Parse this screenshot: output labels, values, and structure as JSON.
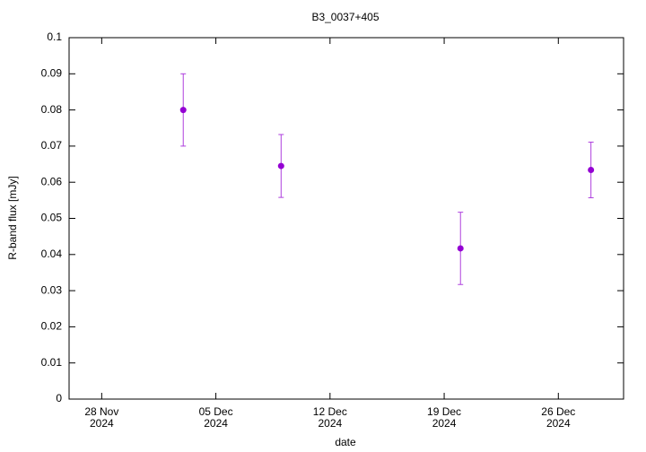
{
  "chart_data": {
    "type": "errorbar",
    "title": "B3_0037+405",
    "xlabel": "date",
    "ylabel": "R-band flux [mJy]",
    "x": [
      "2024-12-03",
      "2024-12-09",
      "2024-12-20",
      "2024-12-28"
    ],
    "series": [
      {
        "color": "#9400d3",
        "values": [
          0.08,
          0.0645,
          0.0417,
          0.0634
        ],
        "errors": [
          0.01,
          0.0087,
          0.01,
          0.0077
        ]
      }
    ],
    "xlim": [
      "2024-11-26",
      "2024-12-30"
    ],
    "xticks": [
      {
        "value": "2024-11-28",
        "label": [
          "28 Nov",
          "2024"
        ]
      },
      {
        "value": "2024-12-05",
        "label": [
          "05 Dec",
          "2024"
        ]
      },
      {
        "value": "2024-12-12",
        "label": [
          "12 Dec",
          "2024"
        ]
      },
      {
        "value": "2024-12-19",
        "label": [
          "19 Dec",
          "2024"
        ]
      },
      {
        "value": "2024-12-26",
        "label": [
          "26 Dec",
          "2024"
        ]
      }
    ],
    "ylim": [
      0,
      0.1
    ],
    "yticks": [
      0,
      0.01,
      0.02,
      0.03,
      0.04,
      0.05,
      0.06,
      0.07,
      0.08,
      0.09,
      0.1
    ]
  }
}
